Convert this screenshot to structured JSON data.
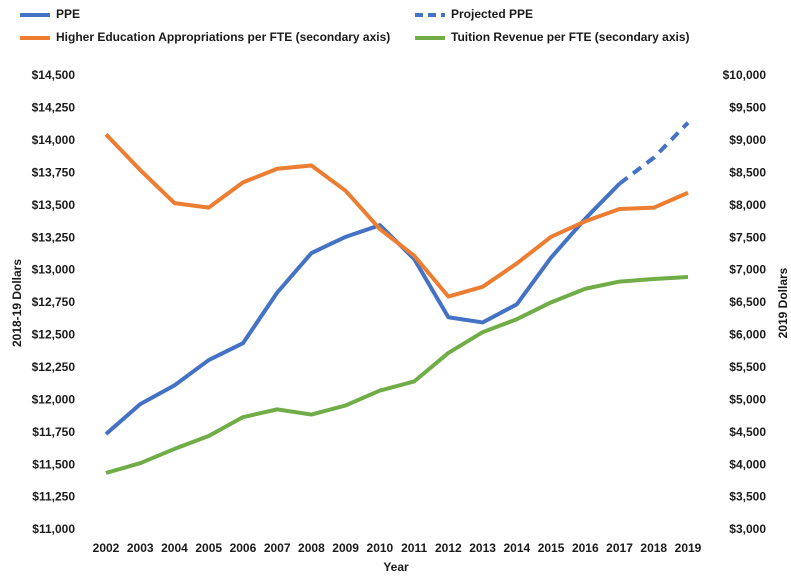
{
  "chart_data": {
    "type": "line",
    "x_label": "Year",
    "y_label": "2018-19 Dollars",
    "y2_label": "2019 Dollars",
    "categories": [
      "2002",
      "2003",
      "2004",
      "2005",
      "2006",
      "2007",
      "2008",
      "2009",
      "2010",
      "2011",
      "2012",
      "2013",
      "2014",
      "2015",
      "2016",
      "2017",
      "2018",
      "2019"
    ],
    "ylim": [
      11000,
      14500
    ],
    "yticks": [
      {
        "value": 11000,
        "label": "$11,000"
      },
      {
        "value": 11250,
        "label": "$11,250"
      },
      {
        "value": 11500,
        "label": "$11,500"
      },
      {
        "value": 11750,
        "label": "$11,750"
      },
      {
        "value": 12000,
        "label": "$12,000"
      },
      {
        "value": 12250,
        "label": "$12,250"
      },
      {
        "value": 12500,
        "label": "$12,500"
      },
      {
        "value": 12750,
        "label": "$12,750"
      },
      {
        "value": 13000,
        "label": "$13,000"
      },
      {
        "value": 13250,
        "label": "$13,250"
      },
      {
        "value": 13500,
        "label": "$13,500"
      },
      {
        "value": 13750,
        "label": "$13,750"
      },
      {
        "value": 14000,
        "label": "$14,000"
      },
      {
        "value": 14250,
        "label": "$14,250"
      },
      {
        "value": 14500,
        "label": "$14,500"
      }
    ],
    "y2lim": [
      3000,
      10000
    ],
    "y2ticks": [
      {
        "value": 3000,
        "label": "$3,000"
      },
      {
        "value": 3500,
        "label": "$3,500"
      },
      {
        "value": 4000,
        "label": "$4,000"
      },
      {
        "value": 4500,
        "label": "$4,500"
      },
      {
        "value": 5000,
        "label": "$5,000"
      },
      {
        "value": 5500,
        "label": "$5,500"
      },
      {
        "value": 6000,
        "label": "$6,000"
      },
      {
        "value": 6500,
        "label": "$6,500"
      },
      {
        "value": 7000,
        "label": "$7,000"
      },
      {
        "value": 7500,
        "label": "$7,500"
      },
      {
        "value": 8000,
        "label": "$8,000"
      },
      {
        "value": 8500,
        "label": "$8,500"
      },
      {
        "value": 9000,
        "label": "$9,000"
      },
      {
        "value": 9500,
        "label": "$9,500"
      },
      {
        "value": 10000,
        "label": "$10,000"
      }
    ],
    "grid": false,
    "legend": "top",
    "series": [
      {
        "name": "PPE",
        "color": "#4472c4",
        "line_style": "solid",
        "values": [
          11740,
          11970,
          12115,
          12310,
          12440,
          12830,
          13135,
          13260,
          13350,
          13090,
          12640,
          12600,
          12740,
          13100,
          13400,
          13670,
          null,
          null
        ]
      },
      {
        "name": "Projected PPE",
        "color": "#4472c4",
        "line_style": "dashed",
        "values": [
          null,
          null,
          null,
          null,
          null,
          null,
          null,
          null,
          null,
          null,
          null,
          null,
          null,
          null,
          null,
          13670,
          13870,
          14140
        ]
      },
      {
        "name": "Higher Education Appropriations per FTE (secondary axis)",
        "color": "#ed7d31",
        "line_style": "solid",
        "axis": "y2",
        "values": [
          9100,
          8550,
          8040,
          7970,
          8360,
          8570,
          8620,
          8230,
          7640,
          7230,
          6600,
          6750,
          7110,
          7520,
          7760,
          7950,
          7970,
          8200
        ]
      },
      {
        "name": "Tuition Revenue per FTE (secondary axis)",
        "color": "#70ad47",
        "line_style": "solid",
        "axis": "y2",
        "values": [
          3880,
          4030,
          4250,
          4450,
          4740,
          4860,
          4780,
          4920,
          5150,
          5290,
          5730,
          6050,
          6250,
          6510,
          6720,
          6830,
          6870,
          6900
        ]
      }
    ]
  }
}
